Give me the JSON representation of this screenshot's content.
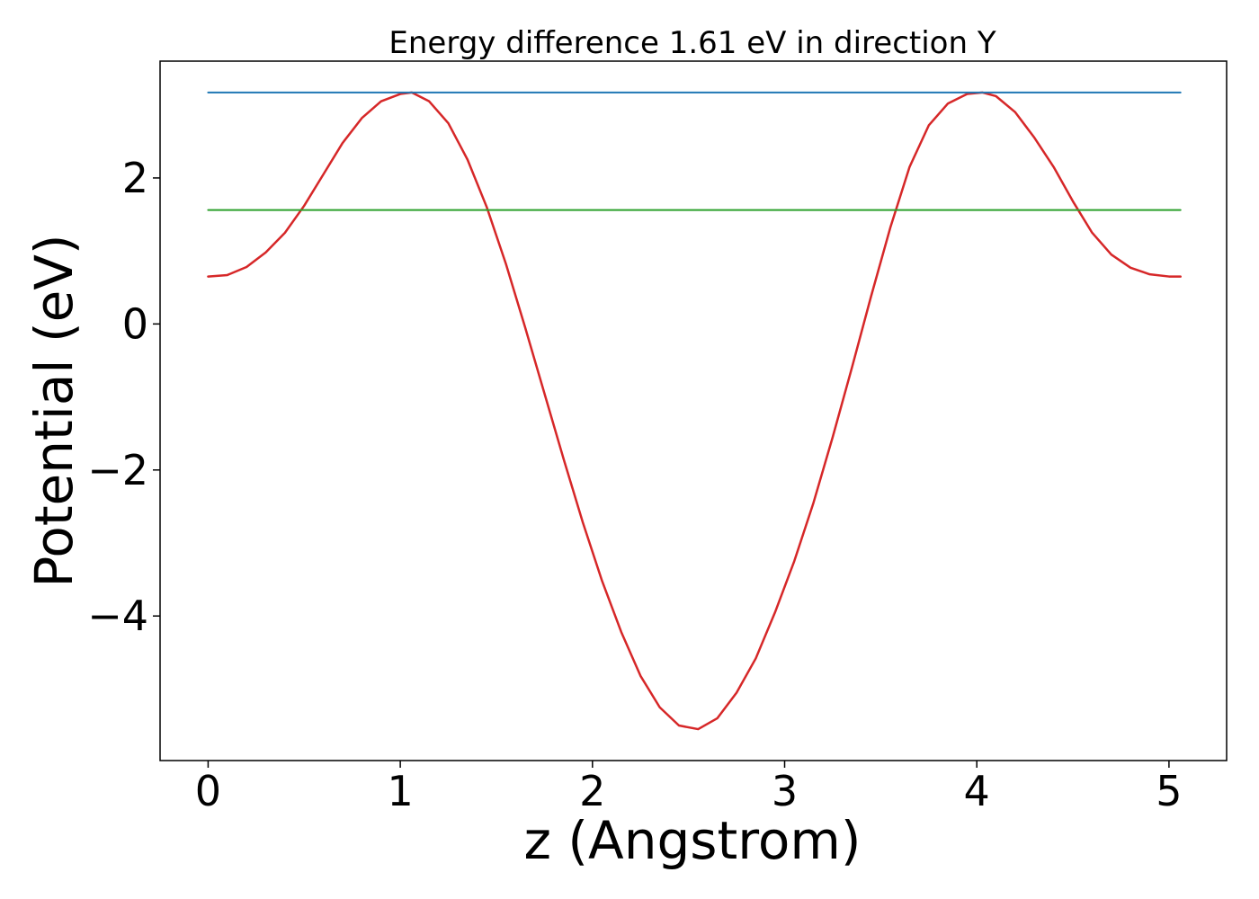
{
  "chart_data": {
    "type": "line",
    "title": "Energy difference 1.61 eV in direction Y",
    "xlabel": "z (Angstrom)",
    "ylabel": "Potential (eV)",
    "xlim": [
      -0.25,
      5.3
    ],
    "ylim": [
      -5.98,
      3.6
    ],
    "xticks": [
      0,
      1,
      2,
      3,
      4,
      5
    ],
    "xtick_labels": [
      "0",
      "1",
      "2",
      "3",
      "4",
      "5"
    ],
    "yticks": [
      -4,
      -2,
      0,
      2
    ],
    "ytick_labels": [
      "−4",
      "−2",
      "0",
      "2"
    ],
    "grid": false,
    "series": [
      {
        "name": "",
        "color": "#d62728",
        "x": [
          0.0,
          0.1,
          0.2,
          0.3,
          0.4,
          0.5,
          0.6,
          0.7,
          0.8,
          0.9,
          1.0,
          1.06,
          1.15,
          1.25,
          1.35,
          1.45,
          1.55,
          1.65,
          1.75,
          1.85,
          1.95,
          2.05,
          2.15,
          2.25,
          2.35,
          2.45,
          2.55,
          2.65,
          2.75,
          2.85,
          2.95,
          3.05,
          3.15,
          3.25,
          3.35,
          3.45,
          3.55,
          3.65,
          3.75,
          3.85,
          3.95,
          4.03,
          4.1,
          4.2,
          4.3,
          4.4,
          4.5,
          4.6,
          4.7,
          4.8,
          4.9,
          5.0,
          5.06
        ],
        "y": [
          0.65,
          0.67,
          0.78,
          0.98,
          1.25,
          1.62,
          2.05,
          2.48,
          2.82,
          3.05,
          3.15,
          3.17,
          3.05,
          2.75,
          2.25,
          1.6,
          0.82,
          -0.05,
          -0.95,
          -1.85,
          -2.72,
          -3.52,
          -4.22,
          -4.82,
          -5.25,
          -5.5,
          -5.55,
          -5.4,
          -5.05,
          -4.58,
          -3.95,
          -3.25,
          -2.45,
          -1.55,
          -0.6,
          0.38,
          1.32,
          2.15,
          2.72,
          3.02,
          3.15,
          3.17,
          3.12,
          2.9,
          2.55,
          2.15,
          1.68,
          1.25,
          0.95,
          0.77,
          0.68,
          0.65,
          0.65
        ]
      },
      {
        "name": "",
        "color": "#1f77b4",
        "x": [
          0.0,
          5.06
        ],
        "y": [
          3.17,
          3.17
        ]
      },
      {
        "name": "",
        "color": "#2ca02c",
        "x": [
          0.0,
          5.06
        ],
        "y": [
          1.56,
          1.56
        ]
      }
    ]
  }
}
